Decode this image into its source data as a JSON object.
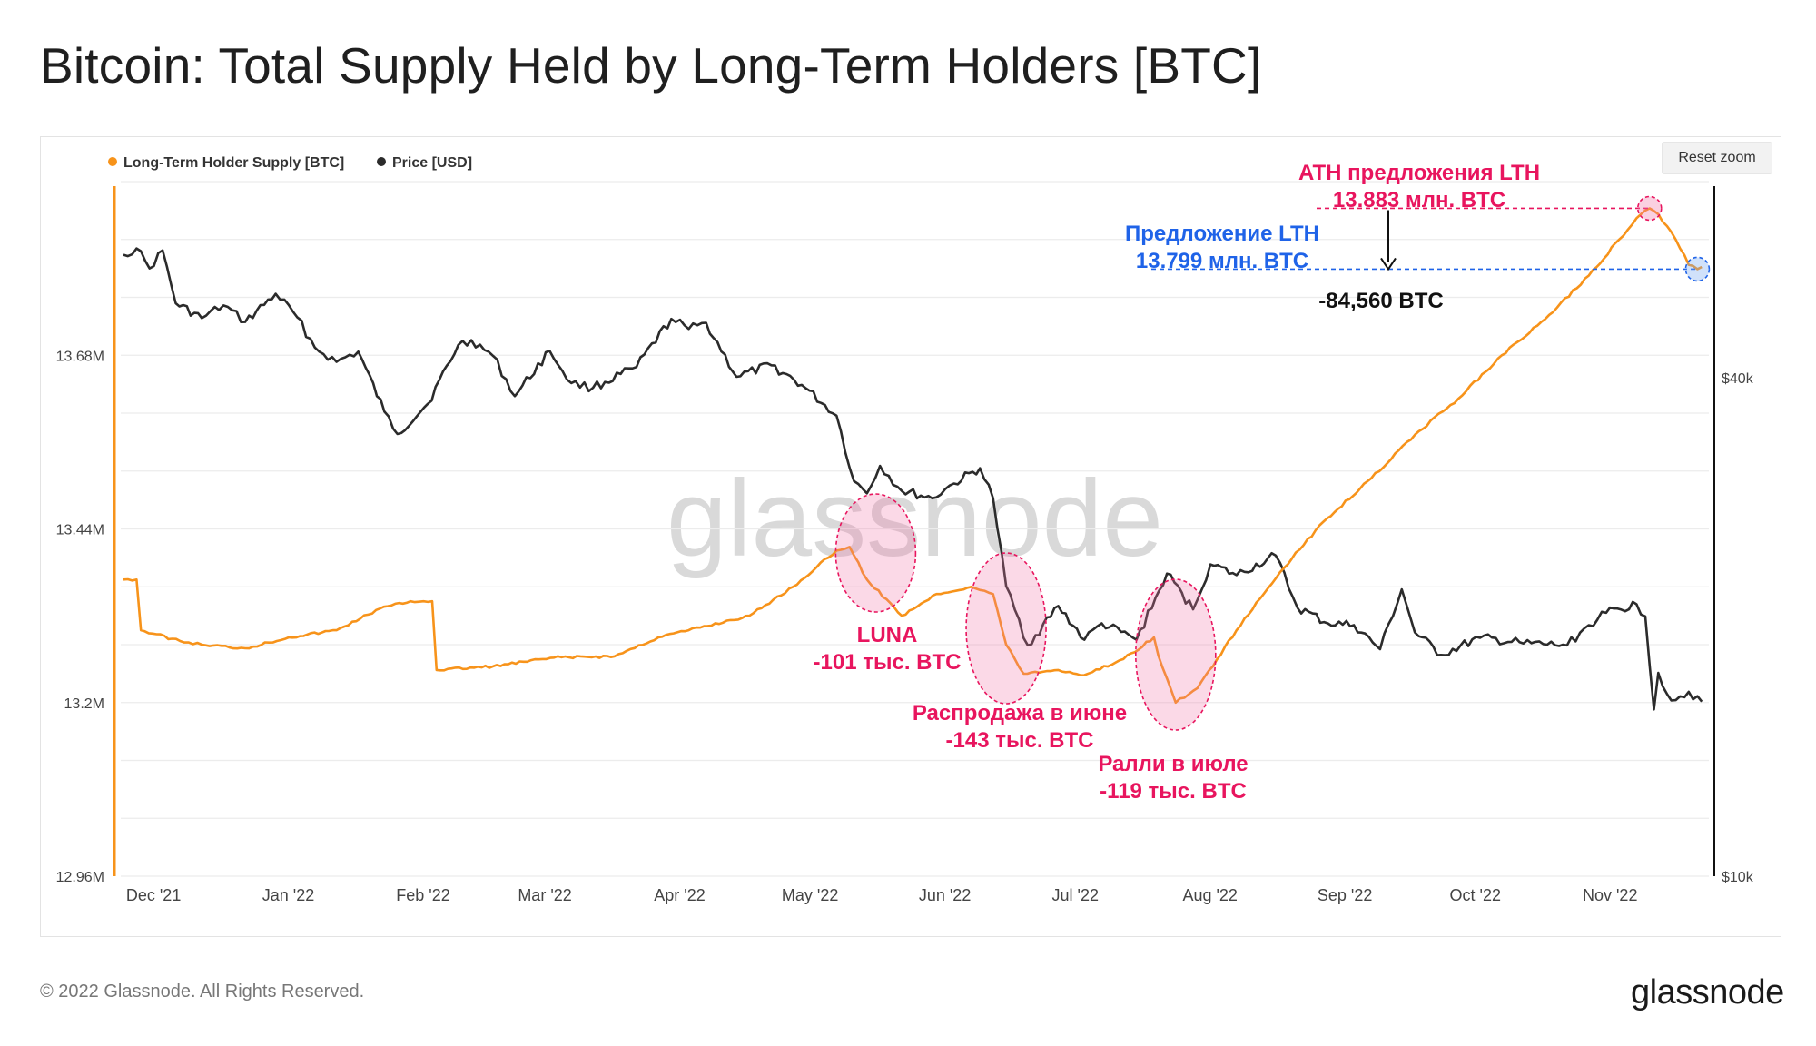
{
  "header": {
    "title": "Bitcoin: Total Supply Held by Long-Term Holders [BTC]"
  },
  "toolbar": {
    "reset_zoom_label": "Reset zoom"
  },
  "footer": {
    "copyright": "© 2022 Glassnode. All Rights Reserved.",
    "logo": "glassnode"
  },
  "watermark": "glassnode",
  "colors": {
    "lth": "#f7931a",
    "price": "#2b2b2b",
    "annotation_red": "#e8155e",
    "annotation_blue": "#1f63e8"
  },
  "chart_data": {
    "type": "line",
    "legend": {
      "position": "top-left",
      "entries": [
        "Long-Term Holder Supply [BTC]",
        "Price [USD]"
      ]
    },
    "x_ticks": [
      "Dec '21",
      "Jan '22",
      "Feb '22",
      "Mar '22",
      "Apr '22",
      "May '22",
      "Jun '22",
      "Jul '22",
      "Aug '22",
      "Sep '22",
      "Oct '22",
      "Nov '22"
    ],
    "y_left": {
      "ticks": [
        "13.68M",
        "13.44M",
        "13.2M",
        "12.96M"
      ],
      "range": [
        12.96,
        13.92
      ],
      "unit": "M BTC"
    },
    "y_right": {
      "ticks": [
        "$40k",
        "$10k"
      ],
      "scale": "log",
      "range": [
        10000,
        69000
      ]
    },
    "grid": true,
    "series": [
      {
        "name": "Long-Term Holder Supply [BTC]",
        "axis": "left",
        "points": [
          [
            "2021-11-22",
            13.37
          ],
          [
            "2021-11-25",
            13.37
          ],
          [
            "2021-11-26",
            13.3
          ],
          [
            "2021-12-05",
            13.285
          ],
          [
            "2021-12-10",
            13.28
          ],
          [
            "2021-12-20",
            13.275
          ],
          [
            "2021-12-30",
            13.29
          ],
          [
            "2022-01-10",
            13.3
          ],
          [
            "2022-01-20",
            13.33
          ],
          [
            "2022-01-27",
            13.34
          ],
          [
            "2022-02-01",
            13.34
          ],
          [
            "2022-02-02",
            13.245
          ],
          [
            "2022-02-15",
            13.25
          ],
          [
            "2022-03-01",
            13.262
          ],
          [
            "2022-03-15",
            13.264
          ],
          [
            "2022-03-25",
            13.29
          ],
          [
            "2022-04-01",
            13.3
          ],
          [
            "2022-04-15",
            13.32
          ],
          [
            "2022-04-25",
            13.36
          ],
          [
            "2022-05-05",
            13.41
          ],
          [
            "2022-05-08",
            13.415
          ],
          [
            "2022-05-12",
            13.37
          ],
          [
            "2022-05-20",
            13.32
          ],
          [
            "2022-05-28",
            13.35
          ],
          [
            "2022-06-05",
            13.36
          ],
          [
            "2022-06-10",
            13.35
          ],
          [
            "2022-06-13",
            13.28
          ],
          [
            "2022-06-17",
            13.24
          ],
          [
            "2022-06-25",
            13.245
          ],
          [
            "2022-07-01",
            13.238
          ],
          [
            "2022-07-10",
            13.26
          ],
          [
            "2022-07-17",
            13.29
          ],
          [
            "2022-07-18",
            13.265
          ],
          [
            "2022-07-22",
            13.2
          ],
          [
            "2022-07-27",
            13.22
          ],
          [
            "2022-08-05",
            13.3
          ],
          [
            "2022-08-15",
            13.38
          ],
          [
            "2022-08-25",
            13.45
          ],
          [
            "2022-09-05",
            13.51
          ],
          [
            "2022-09-15",
            13.57
          ],
          [
            "2022-09-25",
            13.62
          ],
          [
            "2022-10-05",
            13.68
          ],
          [
            "2022-10-15",
            13.73
          ],
          [
            "2022-10-25",
            13.79
          ],
          [
            "2022-11-01",
            13.84
          ],
          [
            "2022-11-06",
            13.875
          ],
          [
            "2022-11-08",
            13.883
          ],
          [
            "2022-11-10",
            13.875
          ],
          [
            "2022-11-14",
            13.84
          ],
          [
            "2022-11-17",
            13.805
          ],
          [
            "2022-11-19",
            13.799
          ],
          [
            "2022-11-20",
            13.802
          ]
        ]
      },
      {
        "name": "Price [USD]",
        "axis": "right",
        "points": [
          [
            "2021-11-22",
            56300
          ],
          [
            "2021-11-25",
            57300
          ],
          [
            "2021-11-28",
            54200
          ],
          [
            "2021-12-01",
            57000
          ],
          [
            "2021-12-04",
            49200
          ],
          [
            "2021-12-10",
            47200
          ],
          [
            "2021-12-15",
            48900
          ],
          [
            "2021-12-20",
            46700
          ],
          [
            "2021-12-27",
            50500
          ],
          [
            "2022-01-01",
            47300
          ],
          [
            "2022-01-05",
            43500
          ],
          [
            "2022-01-10",
            41800
          ],
          [
            "2022-01-15",
            43000
          ],
          [
            "2022-01-21",
            36400
          ],
          [
            "2022-01-24",
            34200
          ],
          [
            "2022-01-31",
            37200
          ],
          [
            "2022-02-07",
            43800
          ],
          [
            "2022-02-10",
            44400
          ],
          [
            "2022-02-15",
            42500
          ],
          [
            "2022-02-20",
            38000
          ],
          [
            "2022-02-28",
            43100
          ],
          [
            "2022-03-05",
            39400
          ],
          [
            "2022-03-10",
            38900
          ],
          [
            "2022-03-20",
            41200
          ],
          [
            "2022-03-28",
            47100
          ],
          [
            "2022-04-01",
            45800
          ],
          [
            "2022-04-05",
            46600
          ],
          [
            "2022-04-12",
            40100
          ],
          [
            "2022-04-20",
            41400
          ],
          [
            "2022-04-27",
            39200
          ],
          [
            "2022-05-05",
            36000
          ],
          [
            "2022-05-09",
            30000
          ],
          [
            "2022-05-12",
            29000
          ],
          [
            "2022-05-15",
            31300
          ],
          [
            "2022-05-20",
            29200
          ],
          [
            "2022-05-27",
            28600
          ],
          [
            "2022-06-01",
            29800
          ],
          [
            "2022-06-07",
            31100
          ],
          [
            "2022-06-10",
            28600
          ],
          [
            "2022-06-13",
            22400
          ],
          [
            "2022-06-18",
            19000
          ],
          [
            "2022-06-25",
            21200
          ],
          [
            "2022-07-01",
            19300
          ],
          [
            "2022-07-05",
            20200
          ],
          [
            "2022-07-13",
            19300
          ],
          [
            "2022-07-20",
            23200
          ],
          [
            "2022-07-26",
            21000
          ],
          [
            "2022-07-30",
            23800
          ],
          [
            "2022-08-05",
            23100
          ],
          [
            "2022-08-14",
            24400
          ],
          [
            "2022-08-19",
            21100
          ],
          [
            "2022-08-26",
            20200
          ],
          [
            "2022-09-01",
            20100
          ],
          [
            "2022-09-07",
            18800
          ],
          [
            "2022-09-12",
            22200
          ],
          [
            "2022-09-15",
            19700
          ],
          [
            "2022-09-21",
            18500
          ],
          [
            "2022-09-30",
            19400
          ],
          [
            "2022-10-10",
            19100
          ],
          [
            "2022-10-20",
            19000
          ],
          [
            "2022-10-25",
            20100
          ],
          [
            "2022-10-29",
            20800
          ],
          [
            "2022-11-05",
            21300
          ],
          [
            "2022-11-07",
            20600
          ],
          [
            "2022-11-09",
            15900
          ],
          [
            "2022-11-10",
            17600
          ],
          [
            "2022-11-13",
            16300
          ],
          [
            "2022-11-17",
            16700
          ],
          [
            "2022-11-20",
            16250
          ]
        ]
      }
    ],
    "annotations": [
      {
        "id": "ath",
        "lines": [
          "ATH предложения LTH",
          "13.883 млн. BTC"
        ]
      },
      {
        "id": "current",
        "lines": [
          "Предложение LTH",
          "13.799 млн. BTC"
        ]
      },
      {
        "id": "delta",
        "lines": [
          "-84,560 BTC"
        ]
      },
      {
        "id": "luna",
        "lines": [
          "LUNA",
          "-101 тыс. BTC"
        ]
      },
      {
        "id": "june",
        "lines": [
          "Распродажа в июне",
          "-143 тыс. BTC"
        ]
      },
      {
        "id": "july",
        "lines": [
          "Ралли в июле",
          "-119 тыс. BTC"
        ]
      }
    ]
  }
}
